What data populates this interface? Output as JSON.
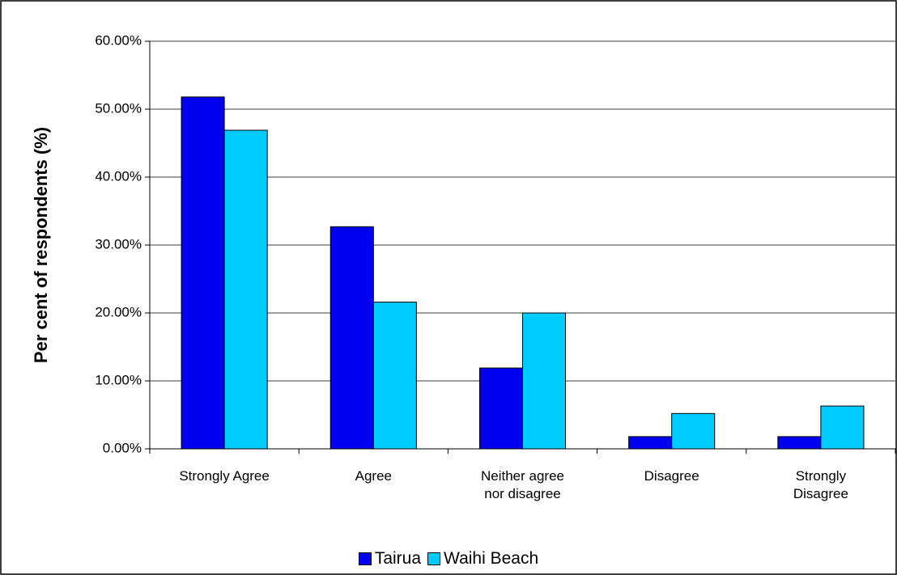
{
  "chart_data": {
    "type": "bar",
    "y_axis_label": "Per cent of respondents (%)",
    "categories": [
      "Strongly Agree",
      "Agree",
      "Neither agree nor disagree",
      "Disagree",
      "Strongly Disagree"
    ],
    "series": [
      {
        "name": "Tairua",
        "color": "#0000f0",
        "values": [
          51.8,
          32.7,
          11.9,
          1.8,
          1.8
        ]
      },
      {
        "name": "Waihi Beach",
        "color": "#00ccff",
        "values": [
          46.9,
          21.6,
          20.0,
          5.2,
          6.3
        ]
      }
    ],
    "ylim": [
      0,
      60
    ],
    "yticks": [
      {
        "value": 0,
        "label": "0.00%"
      },
      {
        "value": 10,
        "label": "10.00%"
      },
      {
        "value": 20,
        "label": "20.00%"
      },
      {
        "value": 30,
        "label": "30.00%"
      },
      {
        "value": 40,
        "label": "40.00%"
      },
      {
        "value": 50,
        "label": "50.00%"
      },
      {
        "value": 60,
        "label": "60.00%"
      }
    ],
    "grid": true,
    "legend": "bottom"
  }
}
